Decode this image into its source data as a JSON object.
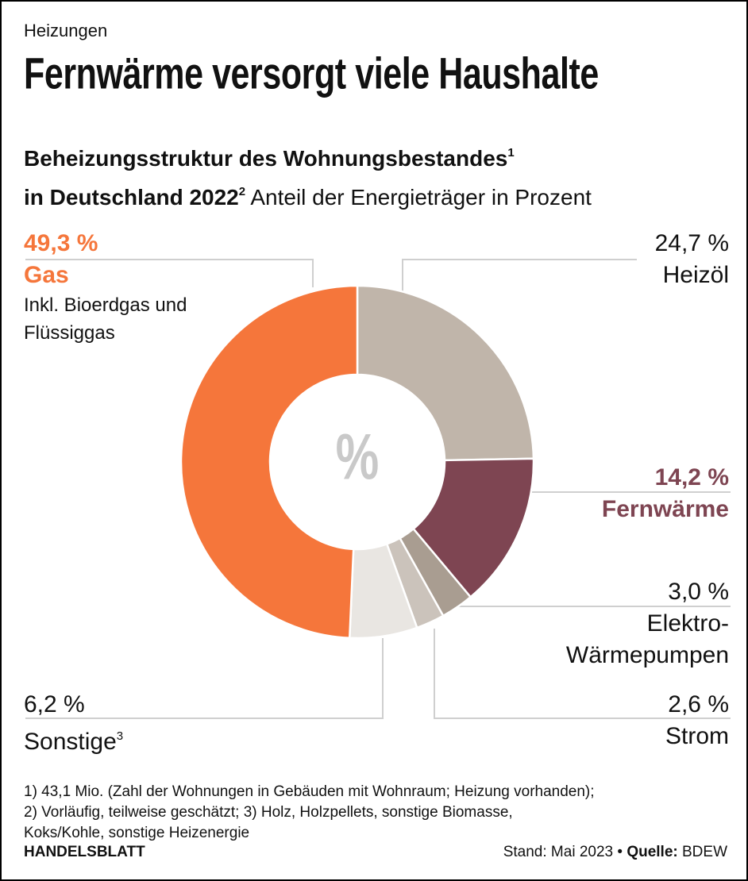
{
  "kicker": "Heizungen",
  "headline": "Fernwärme versorgt viele Haushalte",
  "chart_data": {
    "type": "donut",
    "subtitle": {
      "line1": "Beheizungsstruktur des Wohnungsbestandes",
      "note1": "1",
      "line2": "in Deutschland 2022",
      "note2": "2",
      "unit": "Anteil der Energieträger in Prozent"
    },
    "center_label": "%",
    "categories": [
      "Heizöl",
      "Fernwärme",
      "Elektro-Wärmepumpen",
      "Strom",
      "Sonstige",
      "Gas"
    ],
    "category_notes": [
      null,
      null,
      null,
      null,
      "3",
      null
    ],
    "values": [
      24.7,
      14.2,
      3.0,
      2.6,
      6.2,
      49.3
    ],
    "value_labels": [
      "24,7 %",
      "14,2 %",
      "3,0 %",
      "2,6 %",
      "6,2 %",
      "49,3 %"
    ],
    "colors": [
      "#c0b5aa",
      "#7e4552",
      "#a99d91",
      "#cbc3bb",
      "#e9e6e2",
      "#f5763b"
    ],
    "highlight": [
      false,
      true,
      false,
      false,
      false,
      true
    ],
    "descriptions": [
      null,
      null,
      null,
      null,
      null,
      "Inkl. Bioerdgas und Flüssiggas"
    ]
  },
  "footnotes": [
    "1) 43,1 Mio. (Zahl der Wohnungen in Gebäuden mit Wohnraum; Heizung vorhanden);",
    "2) Vorläufig, teilweise geschätzt; 3) Holz, Holzpellets, sonstige Biomasse,",
    "Koks/Kohle, sonstige Heizenergie"
  ],
  "footer": {
    "brand": "HANDELSBLATT",
    "date": "Stand: Mai 2023",
    "source_label": "Quelle:",
    "source": "BDEW"
  }
}
